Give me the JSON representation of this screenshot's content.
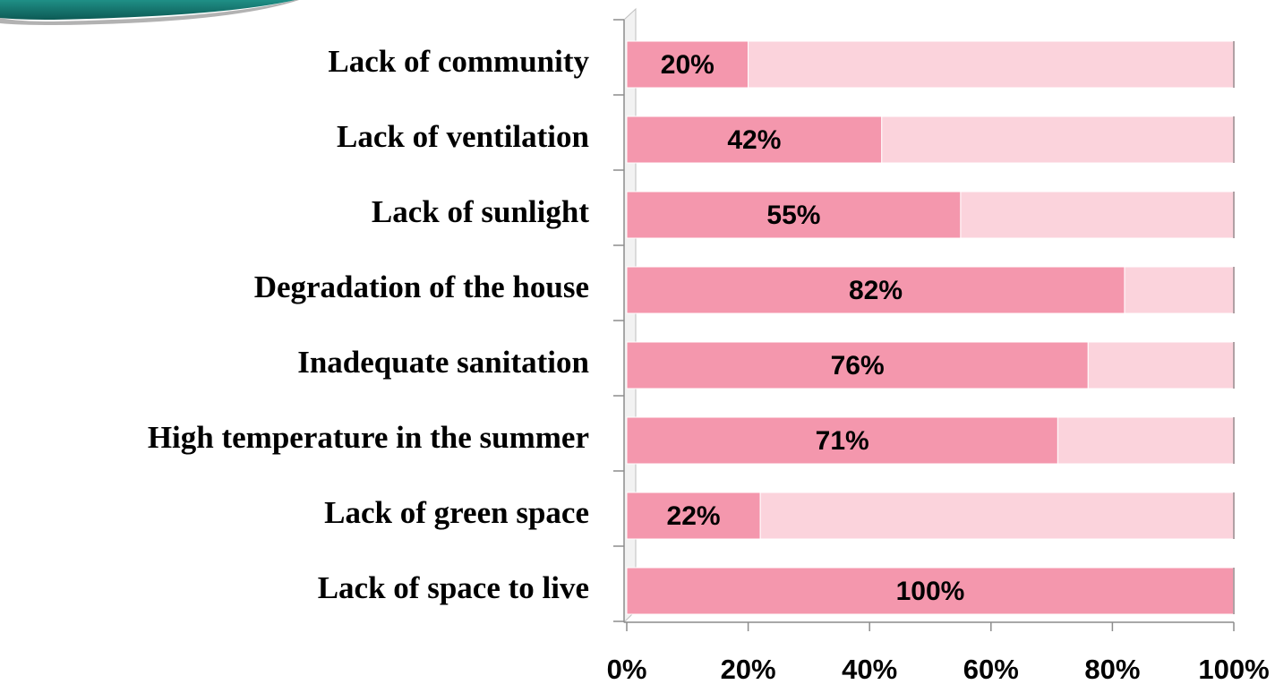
{
  "chart_data": {
    "type": "stacked-barh",
    "categories": [
      "Lack of community",
      "Lack of ventilation",
      "Lack of sunlight",
      "Degradation of the house",
      "Inadequate sanitation",
      "High temperature in the summer",
      "Lack of green space",
      "Lack of space to live"
    ],
    "series": [
      {
        "color": "#f497ad",
        "values": [
          20,
          42,
          55,
          82,
          76,
          71,
          22,
          100
        ],
        "value_labels": [
          "20%",
          "42%",
          "55%",
          "82%",
          "76%",
          "71%",
          "22%",
          "100%"
        ]
      },
      {
        "color": "#fbd3dc",
        "values": [
          80,
          58,
          45,
          18,
          24,
          29,
          78,
          0
        ]
      }
    ],
    "xlim": [
      0,
      100
    ],
    "xticks": [
      {
        "value": 0,
        "label": "0%"
      },
      {
        "value": 20,
        "label": "20%"
      },
      {
        "value": 40,
        "label": "40%"
      },
      {
        "value": 60,
        "label": "60%"
      },
      {
        "value": 80,
        "label": "80%"
      },
      {
        "value": 100,
        "label": "100%"
      }
    ],
    "grid": false
  }
}
